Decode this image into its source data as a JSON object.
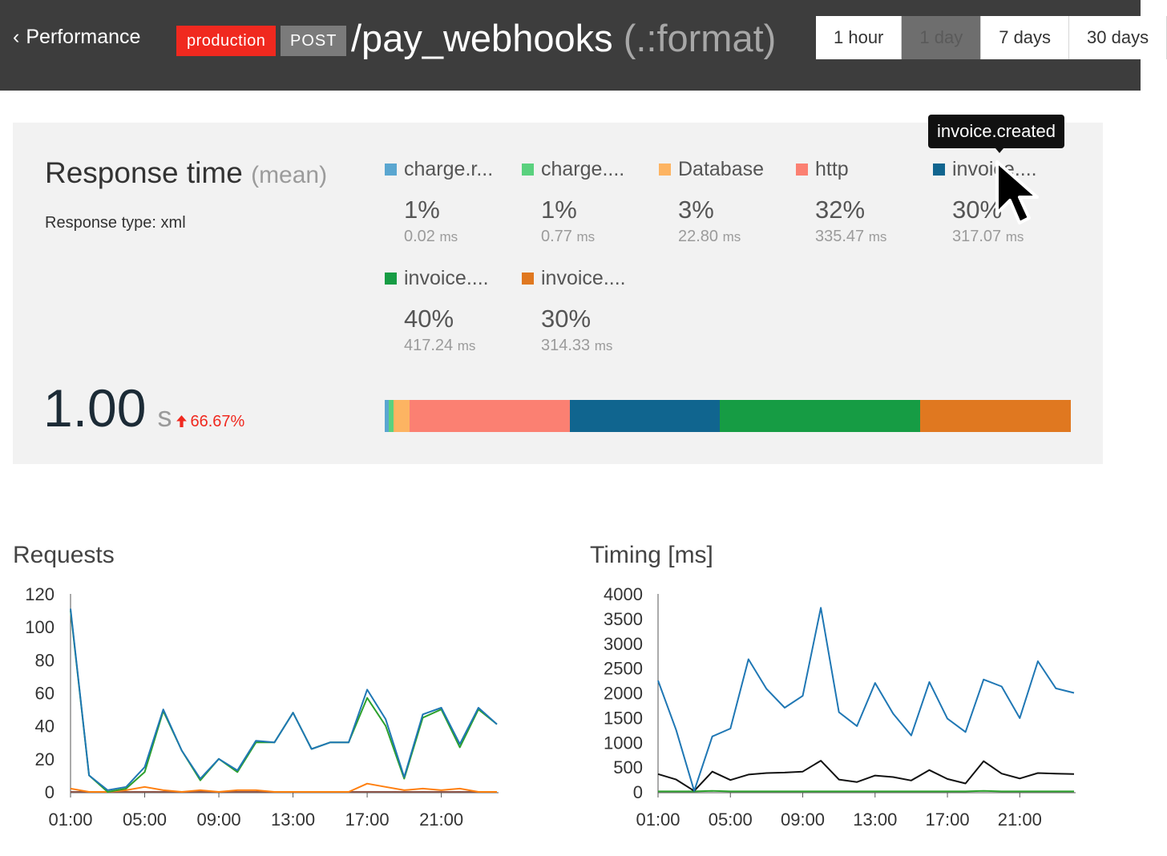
{
  "header": {
    "back_label": "Performance",
    "environment": "production",
    "method": "POST",
    "route": "/pay_webhooks",
    "route_suffix": "(.:format)",
    "ranges": [
      {
        "label": "1 hour",
        "active": false
      },
      {
        "label": "1 day",
        "active": true
      },
      {
        "label": "7 days",
        "active": false
      },
      {
        "label": "30 days",
        "active": false
      }
    ]
  },
  "response": {
    "title": "Response time",
    "title_suffix": "(mean)",
    "type_label": "Response type: xml",
    "value": "1.00",
    "unit": "s",
    "trend": "66.67%",
    "trend_direction": "up",
    "trend_color": "#f0291f"
  },
  "breakdown": [
    {
      "label": "charge.r...",
      "percent": "1%",
      "ms": "0.02",
      "unit": "ms",
      "color": "#5aa6d0",
      "share": 0.6
    },
    {
      "label": "charge....",
      "percent": "1%",
      "ms": "0.77",
      "unit": "ms",
      "color": "#5ad17e",
      "share": 0.7
    },
    {
      "label": "Database",
      "percent": "3%",
      "ms": "22.80",
      "unit": "ms",
      "color": "#fdb462",
      "share": 2.3
    },
    {
      "label": "http",
      "percent": "32%",
      "ms": "335.47",
      "unit": "ms",
      "color": "#fb8072",
      "share": 23.4
    },
    {
      "label": "invoice....",
      "percent": "30%",
      "ms": "317.07",
      "unit": "ms",
      "color": "#10658f",
      "share": 21.8
    },
    {
      "label": "invoice....",
      "percent": "40%",
      "ms": "417.24",
      "unit": "ms",
      "color": "#169c44",
      "share": 29.2
    },
    {
      "label": "invoice....",
      "percent": "30%",
      "ms": "314.33",
      "unit": "ms",
      "color": "#e07820",
      "share": 22.0
    }
  ],
  "tooltip": {
    "text": "invoice.created"
  },
  "chart_data": [
    {
      "type": "line",
      "title": "Requests",
      "x": [
        "01:00",
        "02:00",
        "03:00",
        "04:00",
        "05:00",
        "06:00",
        "07:00",
        "08:00",
        "09:00",
        "10:00",
        "11:00",
        "12:00",
        "13:00",
        "14:00",
        "15:00",
        "16:00",
        "17:00",
        "18:00",
        "19:00",
        "20:00",
        "21:00",
        "22:00",
        "23:00",
        "24:00"
      ],
      "x_ticks": [
        "01:00",
        "05:00",
        "09:00",
        "13:00",
        "17:00",
        "21:00"
      ],
      "ylim": [
        0,
        120
      ],
      "y_ticks": [
        0,
        20,
        40,
        60,
        80,
        100,
        120
      ],
      "series": [
        {
          "color": "#1f77b4",
          "values": [
            111,
            10,
            1,
            3,
            15,
            50,
            25,
            8,
            20,
            13,
            31,
            30,
            48,
            26,
            30,
            30,
            62,
            44,
            9,
            47,
            51,
            29,
            51,
            41
          ]
        },
        {
          "color": "#2ca02c",
          "values": [
            110,
            10,
            0,
            2,
            12,
            49,
            25,
            7,
            20,
            12,
            30,
            30,
            48,
            26,
            30,
            30,
            57,
            40,
            8,
            45,
            50,
            27,
            50,
            41
          ]
        },
        {
          "color": "#ff7f0e",
          "values": [
            2,
            0,
            0,
            1,
            3,
            1,
            0,
            1,
            0,
            1,
            1,
            0,
            0,
            0,
            0,
            0,
            5,
            3,
            1,
            2,
            1,
            2,
            0,
            0
          ]
        },
        {
          "color": "#8c564b",
          "values": [
            0,
            0,
            0,
            0,
            0,
            0,
            0,
            0,
            0,
            0,
            0,
            0,
            0,
            0,
            0,
            0,
            0,
            0,
            0,
            0,
            0,
            0,
            0,
            0
          ]
        }
      ]
    },
    {
      "type": "line",
      "title": "Timing [ms]",
      "x": [
        "01:00",
        "02:00",
        "03:00",
        "04:00",
        "05:00",
        "06:00",
        "07:00",
        "08:00",
        "09:00",
        "10:00",
        "11:00",
        "12:00",
        "13:00",
        "14:00",
        "15:00",
        "16:00",
        "17:00",
        "18:00",
        "19:00",
        "20:00",
        "21:00",
        "22:00",
        "23:00",
        "24:00"
      ],
      "x_ticks": [
        "01:00",
        "05:00",
        "09:00",
        "13:00",
        "17:00",
        "21:00"
      ],
      "ylim": [
        0,
        4000
      ],
      "y_ticks": [
        0,
        500,
        1000,
        1500,
        2000,
        2500,
        3000,
        3500,
        4000
      ],
      "series": [
        {
          "color": "#1f77b4",
          "values": [
            2250,
            1250,
            20,
            1120,
            1280,
            2680,
            2080,
            1700,
            1940,
            3720,
            1610,
            1330,
            2200,
            1580,
            1140,
            2220,
            1480,
            1210,
            2270,
            2130,
            1490,
            2640,
            2090,
            2000
          ]
        },
        {
          "color": "#111111",
          "values": [
            360,
            250,
            20,
            410,
            240,
            350,
            380,
            390,
            410,
            630,
            250,
            200,
            330,
            300,
            230,
            440,
            260,
            170,
            620,
            370,
            270,
            380,
            370,
            360
          ]
        },
        {
          "color": "#2ca02c",
          "values": [
            10,
            10,
            10,
            20,
            10,
            10,
            10,
            10,
            10,
            10,
            10,
            10,
            10,
            10,
            10,
            10,
            10,
            10,
            20,
            10,
            10,
            10,
            10,
            10
          ]
        }
      ]
    }
  ]
}
